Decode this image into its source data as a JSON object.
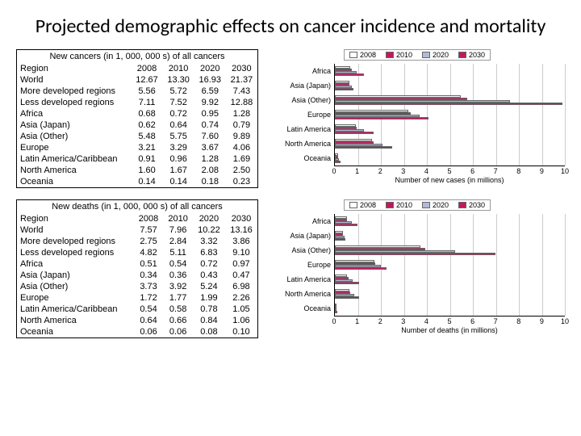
{
  "title": "Projected demographic effects on cancer incidence and mortality",
  "colors": {
    "y2008": "#ffffff",
    "y2010": "#c2185b",
    "y2020": "#b0bad8",
    "y2030": "#c2185b",
    "border": "#666666",
    "grid": "#cccccc"
  },
  "years": [
    "2008",
    "2010",
    "2020",
    "2030"
  ],
  "legend_labels": [
    "2008",
    "2010",
    "2020",
    "2030"
  ],
  "cases": {
    "caption": "New cancers (in 1, 000, 000 s) of all cancers",
    "header_region": "Region",
    "x_label": "Number of new cases (in millions)",
    "x_max": 10,
    "x_ticks": [
      "0",
      "1",
      "2",
      "3",
      "4",
      "5",
      "6",
      "7",
      "8",
      "9",
      "10"
    ],
    "rows": [
      {
        "region": "World",
        "v": [
          12.67,
          13.3,
          16.93,
          21.37
        ]
      },
      {
        "region": "More developed regions",
        "v": [
          5.56,
          5.72,
          6.59,
          7.43
        ]
      },
      {
        "region": "Less developed regions",
        "v": [
          7.11,
          7.52,
          9.92,
          12.88
        ]
      },
      {
        "region": "Africa",
        "v": [
          0.68,
          0.72,
          0.95,
          1.28
        ]
      },
      {
        "region": "Asia (Japan)",
        "v": [
          0.62,
          0.64,
          0.74,
          0.79
        ]
      },
      {
        "region": "Asia (Other)",
        "v": [
          5.48,
          5.75,
          7.6,
          9.89
        ]
      },
      {
        "region": "Europe",
        "v": [
          3.21,
          3.29,
          3.67,
          4.06
        ]
      },
      {
        "region": "Latin America/Caribbean",
        "v": [
          0.91,
          0.96,
          1.28,
          1.69
        ]
      },
      {
        "region": "North America",
        "v": [
          1.6,
          1.67,
          2.08,
          2.5
        ]
      },
      {
        "region": "Oceania",
        "v": [
          0.14,
          0.14,
          0.18,
          0.23
        ]
      }
    ],
    "chart_regions": [
      "Africa",
      "Asia (Japan)",
      "Asia (Other)",
      "Europe",
      "Latin America",
      "North America",
      "Oceania"
    ],
    "chart_data": [
      [
        0.68,
        0.72,
        0.95,
        1.28
      ],
      [
        0.62,
        0.64,
        0.74,
        0.79
      ],
      [
        5.48,
        5.75,
        7.6,
        9.89
      ],
      [
        3.21,
        3.29,
        3.67,
        4.06
      ],
      [
        0.91,
        0.96,
        1.28,
        1.69
      ],
      [
        1.6,
        1.67,
        2.08,
        2.5
      ],
      [
        0.14,
        0.14,
        0.18,
        0.23
      ]
    ]
  },
  "deaths": {
    "caption": "New deaths (in 1, 000, 000 s) of all cancers",
    "header_region": "Region",
    "x_label": "Number of deaths (in millions)",
    "x_max": 10,
    "x_ticks": [
      "0",
      "1",
      "2",
      "3",
      "4",
      "5",
      "6",
      "7",
      "8",
      "9",
      "10"
    ],
    "rows": [
      {
        "region": "World",
        "v": [
          7.57,
          7.96,
          10.22,
          13.16
        ]
      },
      {
        "region": "More developed regions",
        "v": [
          2.75,
          2.84,
          3.32,
          3.86
        ]
      },
      {
        "region": "Less developed regions",
        "v": [
          4.82,
          5.11,
          6.83,
          9.1
        ]
      },
      {
        "region": "Africa",
        "v": [
          0.51,
          0.54,
          0.72,
          0.97
        ]
      },
      {
        "region": "Asia (Japan)",
        "v": [
          0.34,
          0.36,
          0.43,
          0.47
        ]
      },
      {
        "region": "Asia (Other)",
        "v": [
          3.73,
          3.92,
          5.24,
          6.98
        ]
      },
      {
        "region": "Europe",
        "v": [
          1.72,
          1.77,
          1.99,
          2.26
        ]
      },
      {
        "region": "Latin America/Caribbean",
        "v": [
          0.54,
          0.58,
          0.78,
          1.05
        ]
      },
      {
        "region": "North America",
        "v": [
          0.64,
          0.66,
          0.84,
          1.06
        ]
      },
      {
        "region": "Oceania",
        "v": [
          0.06,
          0.06,
          0.08,
          0.1
        ]
      }
    ],
    "chart_regions": [
      "Africa",
      "Asia (Japan)",
      "Asia (Other)",
      "Europe",
      "Latin America",
      "North America",
      "Oceania"
    ],
    "chart_data": [
      [
        0.51,
        0.54,
        0.72,
        0.97
      ],
      [
        0.34,
        0.36,
        0.43,
        0.47
      ],
      [
        3.73,
        3.92,
        5.24,
        6.98
      ],
      [
        1.72,
        1.77,
        1.99,
        2.26
      ],
      [
        0.54,
        0.58,
        0.78,
        1.05
      ],
      [
        0.64,
        0.66,
        0.84,
        1.06
      ],
      [
        0.06,
        0.06,
        0.08,
        0.1
      ]
    ]
  }
}
